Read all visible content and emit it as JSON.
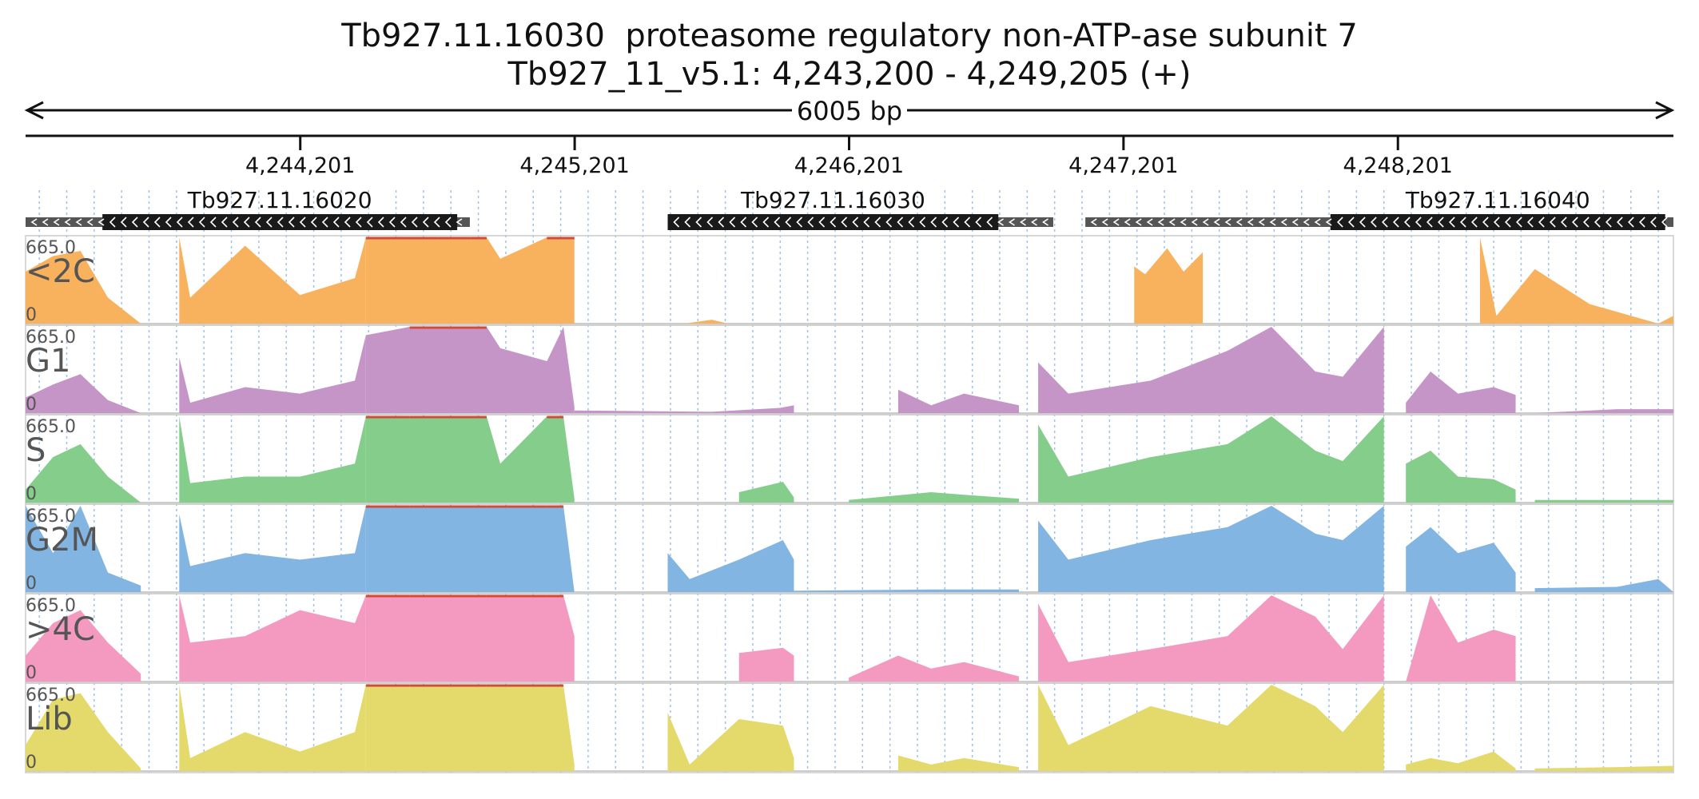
{
  "header": {
    "title": "Tb927.11.16030  proteasome regulatory non-ATP-ase subunit 7",
    "subtitle": "Tb927_11_v5.1: 4,243,200 - 4,249,205 (+)",
    "span_label": "6005 bp"
  },
  "chart_data": {
    "type": "area",
    "region": {
      "chrom": "Tb927_11_v5.1",
      "start": 4243200,
      "end": 4249205,
      "strand": "+"
    },
    "ticks": [
      {
        "pos": 4244201,
        "label": "4,244,201"
      },
      {
        "pos": 4245201,
        "label": "4,245,201"
      },
      {
        "pos": 4246201,
        "label": "4,246,201"
      },
      {
        "pos": 4247201,
        "label": "4,247,201"
      },
      {
        "pos": 4248201,
        "label": "4,248,201"
      }
    ],
    "genes": [
      {
        "name": "Tb927.11.16020",
        "start": 4243200,
        "end": 4244819,
        "cds_start": 4243480,
        "cds_end": 4244773,
        "strand": "-"
      },
      {
        "name": "Tb927.11.16030",
        "start": 4245540,
        "end": 4246945,
        "cds_start": 4245540,
        "cds_end": 4246745,
        "strand": "-"
      },
      {
        "name": "Tb927.11.16040",
        "start": 4247062,
        "end": 4249205,
        "cds_start": 4247955,
        "cds_end": 4249175,
        "strand": "-"
      }
    ],
    "ylim": [
      0,
      665.0
    ],
    "ymax_label": "665.0",
    "ymin_label": "0",
    "series": [
      {
        "name": "<2C",
        "color": "#f8b25e",
        "segments": [
          {
            "x": [
              4243200,
              4243300,
              4243400,
              4243500,
              4243620
            ],
            "y": [
              400,
              520,
              560,
              200,
              0
            ]
          },
          {
            "x": [
              4243760,
              4243800,
              4244000,
              4244200,
              4244400,
              4244440
            ],
            "y": [
              665,
              200,
              600,
              220,
              350,
              665
            ]
          },
          {
            "x": [
              4244440,
              4244700,
              4244820,
              4244880,
              4244930,
              4245100,
              4245160,
              4245200
            ],
            "y": [
              665,
              665,
              665,
              665,
              500,
              665,
              665,
              665
            ]
          },
          {
            "x": [
              4245600,
              4245700,
              4245760
            ],
            "y": [
              0,
              30,
              0
            ]
          },
          {
            "x": [
              4247240,
              4247280,
              4247360,
              4247420,
              4247490
            ],
            "y": [
              440,
              380,
              580,
              400,
              550
            ]
          },
          {
            "x": [
              4248500,
              4248560,
              4248700,
              4248900,
              4249150,
              4249205
            ],
            "y": [
              665,
              60,
              420,
              150,
              0,
              60
            ]
          }
        ]
      },
      {
        "name": "G1",
        "color": "#c495c6",
        "segments": [
          {
            "x": [
              4243200,
              4243300,
              4243400,
              4243500,
              4243620
            ],
            "y": [
              120,
              220,
              300,
              100,
              0
            ]
          },
          {
            "x": [
              4243760,
              4243800,
              4244000,
              4244200,
              4244400,
              4244440
            ],
            "y": [
              430,
              80,
              200,
              150,
              250,
              600
            ]
          },
          {
            "x": [
              4244440,
              4244600,
              4244880,
              4244930,
              4245100,
              4245160,
              4245200
            ],
            "y": [
              600,
              665,
              665,
              500,
              400,
              665,
              50
            ]
          },
          {
            "x": [
              4245200,
              4245700,
              4245950,
              4246000
            ],
            "y": [
              20,
              10,
              40,
              60
            ]
          },
          {
            "x": [
              4246380,
              4246500,
              4246620,
              4246820
            ],
            "y": [
              180,
              60,
              150,
              60
            ]
          },
          {
            "x": [
              4246890,
              4247000,
              4247300,
              4247580,
              4247740,
              4247900,
              4248000,
              4248150
            ],
            "y": [
              390,
              150,
              250,
              480,
              665,
              320,
              280,
              665
            ]
          },
          {
            "x": [
              4248230,
              4248320,
              4248420,
              4248550,
              4248630
            ],
            "y": [
              80,
              320,
              150,
              200,
              140
            ]
          },
          {
            "x": [
              4248700,
              4249000,
              4249205
            ],
            "y": [
              0,
              30,
              30
            ]
          }
        ]
      },
      {
        "name": "S",
        "color": "#84cd8b",
        "segments": [
          {
            "x": [
              4243200,
              4243300,
              4243400,
              4243500,
              4243620
            ],
            "y": [
              100,
              350,
              450,
              200,
              0
            ]
          },
          {
            "x": [
              4243760,
              4243800,
              4244000,
              4244200,
              4244400,
              4244440
            ],
            "y": [
              665,
              150,
              200,
              200,
              300,
              665
            ]
          },
          {
            "x": [
              4244440,
              4244600,
              4244880,
              4244930,
              4245100,
              4245160,
              4245200
            ],
            "y": [
              665,
              665,
              665,
              300,
              665,
              665,
              30
            ]
          },
          {
            "x": [
              4245800,
              4245960,
              4246000
            ],
            "y": [
              80,
              160,
              40
            ]
          },
          {
            "x": [
              4246200,
              4246500,
              4246620,
              4246820
            ],
            "y": [
              20,
              80,
              60,
              30
            ]
          },
          {
            "x": [
              4246890,
              4247000,
              4247300,
              4247580,
              4247740,
              4247900,
              4248000,
              4248150
            ],
            "y": [
              600,
              200,
              350,
              450,
              665,
              400,
              320,
              665
            ]
          },
          {
            "x": [
              4248230,
              4248320,
              4248420,
              4248550,
              4248630
            ],
            "y": [
              300,
              400,
              200,
              180,
              100
            ]
          },
          {
            "x": [
              4248700,
              4249000,
              4249205
            ],
            "y": [
              20,
              20,
              20
            ]
          }
        ]
      },
      {
        "name": "G2M",
        "color": "#82b5e1",
        "segments": [
          {
            "x": [
              4243200,
              4243300,
              4243400,
              4243500,
              4243620
            ],
            "y": [
              665,
              300,
              665,
              150,
              50
            ]
          },
          {
            "x": [
              4243760,
              4243800,
              4244000,
              4244200,
              4244400,
              4244440
            ],
            "y": [
              600,
              200,
              300,
              250,
              300,
              665
            ]
          },
          {
            "x": [
              4244440,
              4244600,
              4244880,
              4244930,
              4245100,
              4245160,
              4245200
            ],
            "y": [
              665,
              665,
              665,
              665,
              665,
              665,
              0
            ]
          },
          {
            "x": [
              4245540,
              4245620,
              4245800,
              4245960,
              4246000
            ],
            "y": [
              300,
              100,
              250,
              400,
              250
            ]
          },
          {
            "x": [
              4246000,
              4246500,
              4246820
            ],
            "y": [
              10,
              20,
              20
            ]
          },
          {
            "x": [
              4246890,
              4247000,
              4247300,
              4247580,
              4247740,
              4247900,
              4248000,
              4248150
            ],
            "y": [
              550,
              250,
              400,
              500,
              665,
              450,
              400,
              665
            ]
          },
          {
            "x": [
              4248230,
              4248320,
              4248420,
              4248550,
              4248630
            ],
            "y": [
              350,
              500,
              300,
              380,
              150
            ]
          },
          {
            "x": [
              4248700,
              4249000,
              4249150,
              4249205
            ],
            "y": [
              30,
              40,
              100,
              0
            ]
          }
        ]
      },
      {
        "name": ">4C",
        "color": "#f49ac1",
        "segments": [
          {
            "x": [
              4243200,
              4243300,
              4243400,
              4243500,
              4243620
            ],
            "y": [
              200,
              450,
              550,
              300,
              60
            ]
          },
          {
            "x": [
              4243760,
              4243800,
              4244000,
              4244200,
              4244400,
              4244440
            ],
            "y": [
              665,
              300,
              350,
              550,
              450,
              665
            ]
          },
          {
            "x": [
              4244440,
              4244600,
              4244880,
              4244930,
              4245100,
              4245160,
              4245200
            ],
            "y": [
              665,
              665,
              665,
              665,
              665,
              665,
              350
            ]
          },
          {
            "x": [
              4245800,
              4245960,
              4246000
            ],
            "y": [
              220,
              260,
              200
            ]
          },
          {
            "x": [
              4246200,
              4246380,
              4246500,
              4246620,
              4246820
            ],
            "y": [
              30,
              200,
              100,
              150,
              40
            ]
          },
          {
            "x": [
              4246890,
              4247000,
              4247300,
              4247580,
              4247740,
              4247900,
              4248000,
              4248150
            ],
            "y": [
              600,
              150,
              250,
              350,
              665,
              500,
              250,
              665
            ]
          },
          {
            "x": [
              4248230,
              4248320,
              4248420,
              4248550,
              4248630
            ],
            "y": [
              0,
              665,
              300,
              400,
              350
            ]
          }
        ]
      },
      {
        "name": "Lib",
        "color": "#e3da6b",
        "segments": [
          {
            "x": [
              4243200,
              4243300,
              4243400,
              4243500,
              4243620
            ],
            "y": [
              200,
              550,
              600,
              300,
              20
            ]
          },
          {
            "x": [
              4243760,
              4243800,
              4244000,
              4244200,
              4244400,
              4244440
            ],
            "y": [
              665,
              100,
              300,
              150,
              300,
              665
            ]
          },
          {
            "x": [
              4244440,
              4244600,
              4244880,
              4244930,
              4245100,
              4245160,
              4245200
            ],
            "y": [
              665,
              665,
              665,
              665,
              665,
              665,
              50
            ]
          },
          {
            "x": [
              4245540,
              4245620,
              4245800,
              4245960,
              4246000
            ],
            "y": [
              450,
              50,
              400,
              350,
              100
            ]
          },
          {
            "x": [
              4246380,
              4246500,
              4246620,
              4246820
            ],
            "y": [
              120,
              50,
              100,
              30
            ]
          },
          {
            "x": [
              4246890,
              4247000,
              4247300,
              4247580,
              4247740,
              4247900,
              4248000,
              4248150
            ],
            "y": [
              665,
              200,
              500,
              350,
              665,
              500,
              300,
              665
            ]
          },
          {
            "x": [
              4248230,
              4248320,
              4248420,
              4248550,
              4248630
            ],
            "y": [
              50,
              100,
              60,
              150,
              20
            ]
          },
          {
            "x": [
              4248700,
              4249000,
              4249205
            ],
            "y": [
              20,
              30,
              40
            ]
          }
        ]
      }
    ]
  }
}
